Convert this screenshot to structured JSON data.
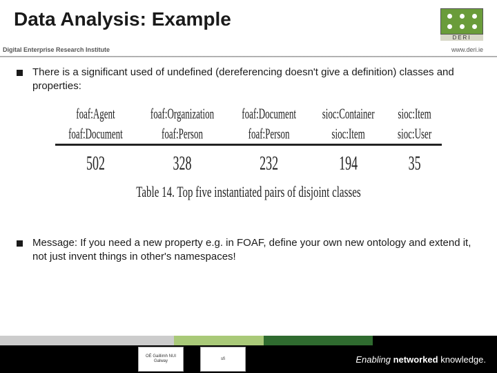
{
  "header": {
    "title": "Data Analysis: Example",
    "logo_letters": "DERI"
  },
  "subheader": {
    "left": "Digital Enterprise Research Institute",
    "right": "www.deri.ie"
  },
  "bullets": {
    "b1": "There is a significant used of undefined (dereferencing doesn't give a definition) classes and properties:",
    "b2": "Message: If you need a new property e.g. in FOAF, define your own new ontology and extend it, not just invent things in other's namespaces!"
  },
  "table": {
    "type": "table",
    "columns": [
      {
        "top": "foaf:Agent",
        "bottom": "foaf:Document"
      },
      {
        "top": "foaf:Organization",
        "bottom": "foaf:Person"
      },
      {
        "top": "foaf:Document",
        "bottom": "foaf:Person"
      },
      {
        "top": "sioc:Container",
        "bottom": "sioc:Item"
      },
      {
        "top": "sioc:Item",
        "bottom": "sioc:User"
      }
    ],
    "values": [
      "502",
      "328",
      "232",
      "194",
      "35"
    ],
    "caption_label": "Table 14.",
    "caption_text": "Top five instantiated pairs of disjoint classes",
    "border_color": "#222222",
    "font_family": "Times New Roman"
  },
  "footer": {
    "stripes": [
      {
        "color": "#cccccc",
        "width": "35%"
      },
      {
        "color": "#a9c978",
        "width": "18%"
      },
      {
        "color": "#2f6b2f",
        "width": "22%"
      },
      {
        "color": "#000000",
        "width": "25%"
      }
    ],
    "logo1": "OÉ Gaillimh NUI Galway",
    "logo2": "sfi",
    "tagline_prefix": "Enabling ",
    "tagline_bold": "networked",
    "tagline_suffix": " knowledge."
  }
}
